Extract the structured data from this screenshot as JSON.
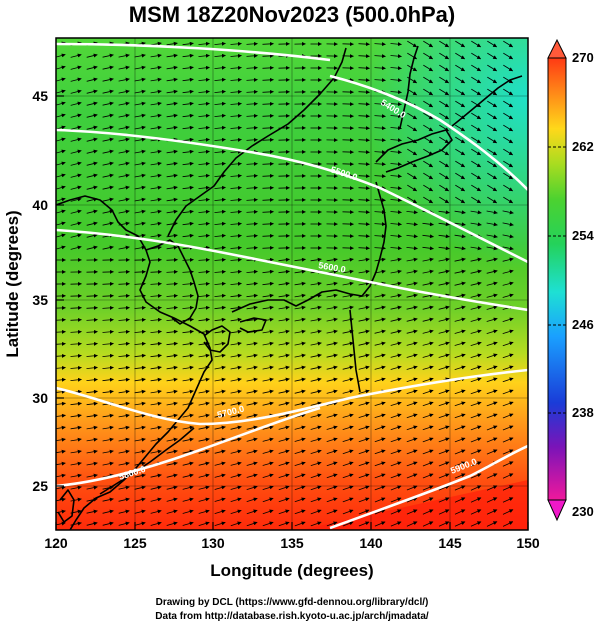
{
  "title": "MSM 18Z20Nov2023 (500.0hPa)",
  "xlabel": "Longitude (degrees)",
  "ylabel": "Latitude  (degrees)",
  "x_ticks": [
    "120",
    "125",
    "130",
    "135",
    "140",
    "145",
    "150"
  ],
  "y_ticks": [
    "25",
    "30",
    "35",
    "40",
    "45"
  ],
  "colorbar": {
    "min": 230,
    "max": 270,
    "labels": [
      "270",
      "262",
      "254",
      "246",
      "238",
      "230"
    ]
  },
  "contours": [
    {
      "label": "5400.0"
    },
    {
      "label": "5500.0"
    },
    {
      "label": "5600.0"
    },
    {
      "label": "5700.0"
    },
    {
      "label": "5800.0"
    },
    {
      "label": "5900.0"
    }
  ],
  "credits": {
    "line1": "Drawing by DCL (https://www.gfd-dennou.org/library/dcl/)",
    "line2": "Data from http://database.rish.kyoto-u.ac.jp/arch/jmadata/"
  },
  "chart_data": {
    "type": "heatmap",
    "title": "MSM 18Z20Nov2023 (500.0hPa)",
    "xlabel": "Longitude (degrees)",
    "ylabel": "Latitude  (degrees)",
    "xlim": [
      120,
      150
    ],
    "ylim": [
      22.5,
      47.5
    ],
    "grid": true,
    "colorbar_range": [
      230,
      270
    ],
    "overlays": [
      "temperature shading",
      "wind vectors",
      "geopotential height contours",
      "coastlines"
    ]
  }
}
